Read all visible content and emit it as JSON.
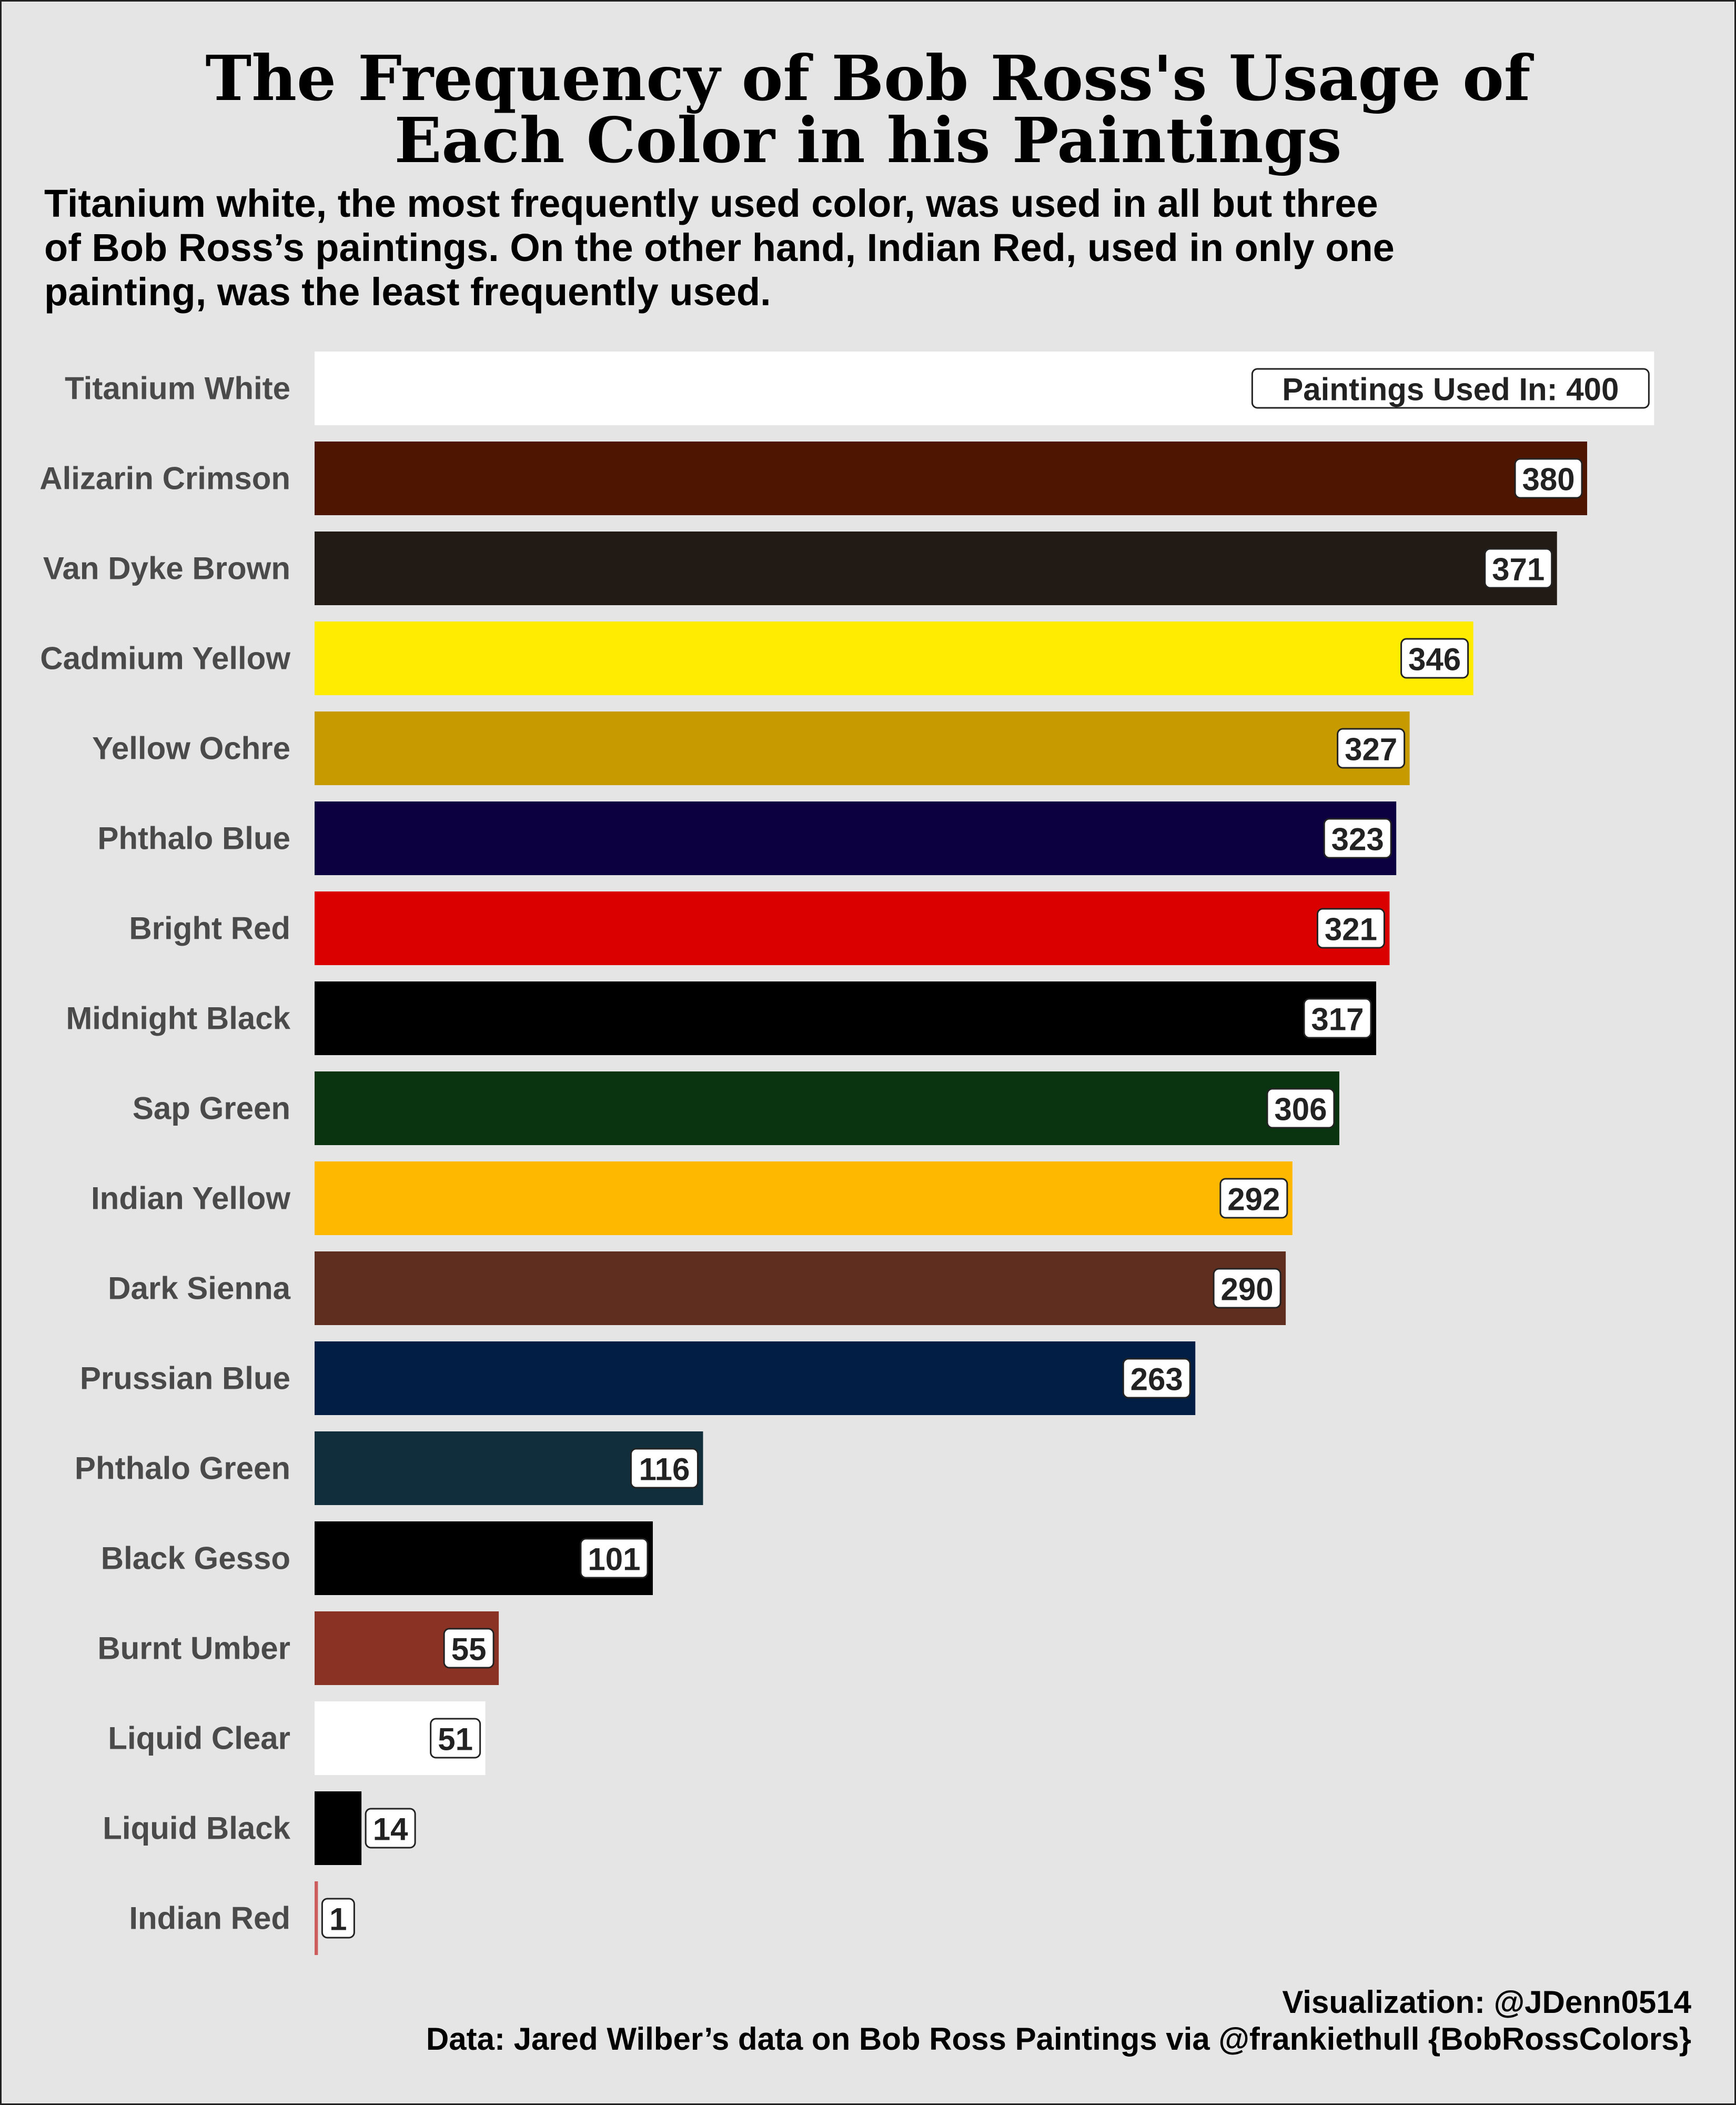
{
  "chart_data": {
    "type": "bar",
    "orientation": "horizontal",
    "title_lines": [
      "The Frequency of Bob Ross's Usage of",
      "Each Color in his Paintings"
    ],
    "subtitle_lines": [
      "Titanium white, the most frequently used color, was used in all but three",
      "of Bob Ross’s paintings. On the other hand, Indian Red, used in only one",
      "painting, was the least frequently used."
    ],
    "xlim": [
      0,
      410
    ],
    "grid": false,
    "legend": "none",
    "first_label_prefix": "Paintings Used In: ",
    "categories": [
      "Titanium White",
      "Alizarin Crimson",
      "Van Dyke Brown",
      "Cadmium Yellow",
      "Yellow Ochre",
      "Phthalo Blue",
      "Bright Red",
      "Midnight Black",
      "Sap Green",
      "Indian Yellow",
      "Dark Sienna",
      "Prussian Blue",
      "Phthalo Green",
      "Black Gesso",
      "Burnt Umber",
      "Liquid Clear",
      "Liquid Black",
      "Indian Red"
    ],
    "values": [
      400,
      380,
      371,
      346,
      327,
      323,
      321,
      317,
      306,
      292,
      290,
      263,
      116,
      101,
      55,
      51,
      14,
      1
    ],
    "colors": [
      "#ffffff",
      "#4e1500",
      "#221b15",
      "#ffec00",
      "#c79b00",
      "#0c0040",
      "#db0000",
      "#000000",
      "#0a3410",
      "#ffb800",
      "#5f2e1f",
      "#021e44",
      "#102e3c",
      "#000000",
      "#8a3324",
      "#ffffff",
      "#000000",
      "#cd5c5c"
    ]
  },
  "credits": {
    "visualization": "Visualization: @JDenn0514",
    "data": "Data: Jared Wilber’s data on Bob Ross Paintings via @frankiethull {BobRossColors}"
  }
}
